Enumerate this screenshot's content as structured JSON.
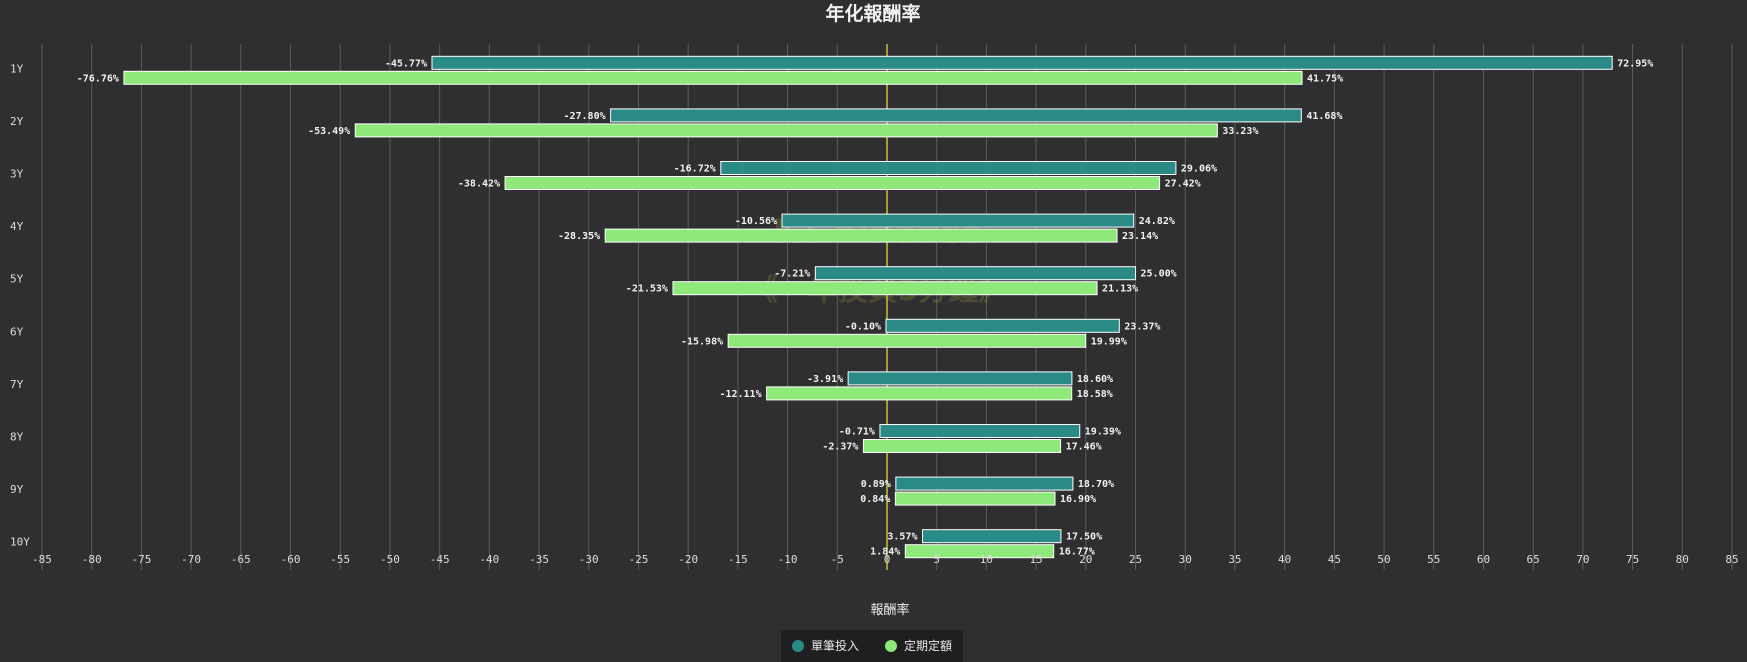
{
  "chart_data": {
    "type": "bar",
    "orientation": "horizontal-floating-range",
    "title": "年化報酬率",
    "xlabel": "報酬率",
    "ylabel": "",
    "xlim": [
      -85,
      85
    ],
    "xticks": [
      -85,
      -80,
      -75,
      -70,
      -65,
      -60,
      -55,
      -50,
      -45,
      -40,
      -35,
      -30,
      -25,
      -20,
      -15,
      -10,
      -5,
      0,
      5,
      10,
      15,
      20,
      25,
      30,
      35,
      40,
      45,
      50,
      55,
      60,
      65,
      70,
      75,
      80,
      85
    ],
    "grid": true,
    "legend_position": "bottom-center",
    "categories": [
      "1Y",
      "2Y",
      "3Y",
      "4Y",
      "5Y",
      "6Y",
      "7Y",
      "8Y",
      "9Y",
      "10Y"
    ],
    "series": [
      {
        "name": "單筆投入",
        "color": "#2a8b86",
        "min": [
          -45.77,
          -27.8,
          -16.72,
          -10.56,
          -7.21,
          -0.1,
          -3.91,
          -0.71,
          0.89,
          3.57
        ],
        "max": [
          72.95,
          41.68,
          29.06,
          24.82,
          25.0,
          23.37,
          18.6,
          19.39,
          18.7,
          17.5
        ],
        "min_labels": [
          "-45.77%",
          "-27.80%",
          "-16.72%",
          "-10.56%",
          "-7.21%",
          "-0.10%",
          "-3.91%",
          "-0.71%",
          "0.89%",
          "3.57%"
        ],
        "max_labels": [
          "72.95%",
          "41.68%",
          "29.06%",
          "24.82%",
          "25.00%",
          "23.37%",
          "18.60%",
          "19.39%",
          "18.70%",
          "17.50%"
        ]
      },
      {
        "name": "定期定額",
        "color": "#8ee87a",
        "min": [
          -76.76,
          -53.49,
          -38.42,
          -28.35,
          -21.53,
          -15.98,
          -12.11,
          -2.37,
          0.84,
          1.84
        ],
        "max": [
          41.75,
          33.23,
          27.42,
          23.14,
          21.13,
          19.99,
          18.58,
          17.46,
          16.9,
          16.77
        ],
        "min_labels": [
          "-76.76%",
          "-53.49%",
          "-38.42%",
          "-28.35%",
          "-21.53%",
          "-15.98%",
          "-12.11%",
          "-2.37%",
          "0.84%",
          "1.84%"
        ],
        "max_labels": [
          "41.75%",
          "33.23%",
          "27.42%",
          "23.14%",
          "21.13%",
          "19.99%",
          "18.58%",
          "17.46%",
          "16.90%",
          "16.77%"
        ]
      }
    ],
    "watermark": [
      "KT Finance",
      "《一年投資5分鐘》"
    ]
  }
}
